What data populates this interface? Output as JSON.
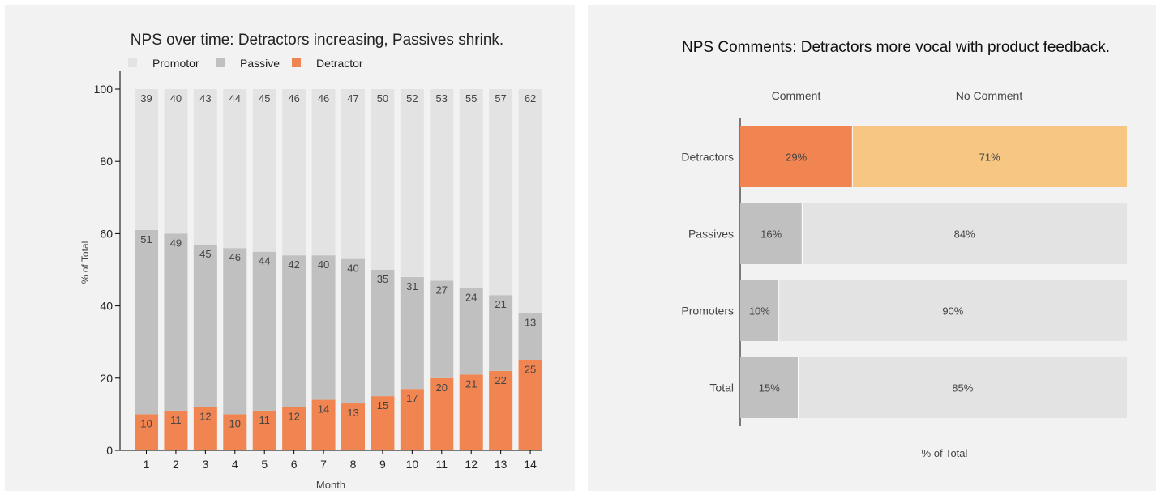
{
  "colors": {
    "promotor": "#e3e3e3",
    "passive": "#bfc0bf",
    "detractor": "#f08552",
    "no_comment_detractor": "#f7c683",
    "text_dark": "#222222",
    "text_mid": "#444444",
    "axis": "#000000"
  },
  "chart_data": [
    {
      "type": "bar",
      "stacked": true,
      "title": "NPS over time: Detractors increasing, Passives shrink.",
      "xlabel": "Month",
      "ylabel": "% of Total",
      "ylim": [
        0,
        100
      ],
      "yticks": [
        0,
        20,
        40,
        60,
        80,
        100
      ],
      "legend_position": "top-left",
      "categories": [
        "1",
        "2",
        "3",
        "4",
        "5",
        "6",
        "7",
        "8",
        "9",
        "10",
        "11",
        "12",
        "13",
        "14"
      ],
      "series": [
        {
          "name": "Detractor",
          "values": [
            10,
            11,
            12,
            10,
            11,
            12,
            14,
            13,
            15,
            17,
            20,
            21,
            22,
            25
          ]
        },
        {
          "name": "Passive",
          "values": [
            51,
            49,
            45,
            46,
            44,
            42,
            40,
            40,
            35,
            31,
            27,
            24,
            21,
            13
          ]
        },
        {
          "name": "Promotor",
          "values": [
            39,
            40,
            43,
            44,
            45,
            46,
            46,
            47,
            50,
            52,
            53,
            55,
            57,
            62
          ]
        }
      ],
      "legend_order": [
        "Promotor",
        "Passive",
        "Detractor"
      ]
    },
    {
      "type": "bar",
      "orientation": "horizontal",
      "stacked": true,
      "title": "NPS Comments: Detractors more vocal with product feedback.",
      "xlabel": "% of Total",
      "ylabel": "",
      "xlim": [
        0,
        100
      ],
      "column_headers": [
        "Comment",
        "No Comment"
      ],
      "categories": [
        "Detractors",
        "Passives",
        "Promoters",
        "Total"
      ],
      "series": [
        {
          "name": "Comment",
          "values": [
            29,
            16,
            10,
            15
          ],
          "labels": [
            "29%",
            "16%",
            "10%",
            "15%"
          ]
        },
        {
          "name": "No Comment",
          "values": [
            71,
            84,
            90,
            85
          ],
          "labels": [
            "71%",
            "84%",
            "90%",
            "85%"
          ]
        }
      ]
    }
  ]
}
